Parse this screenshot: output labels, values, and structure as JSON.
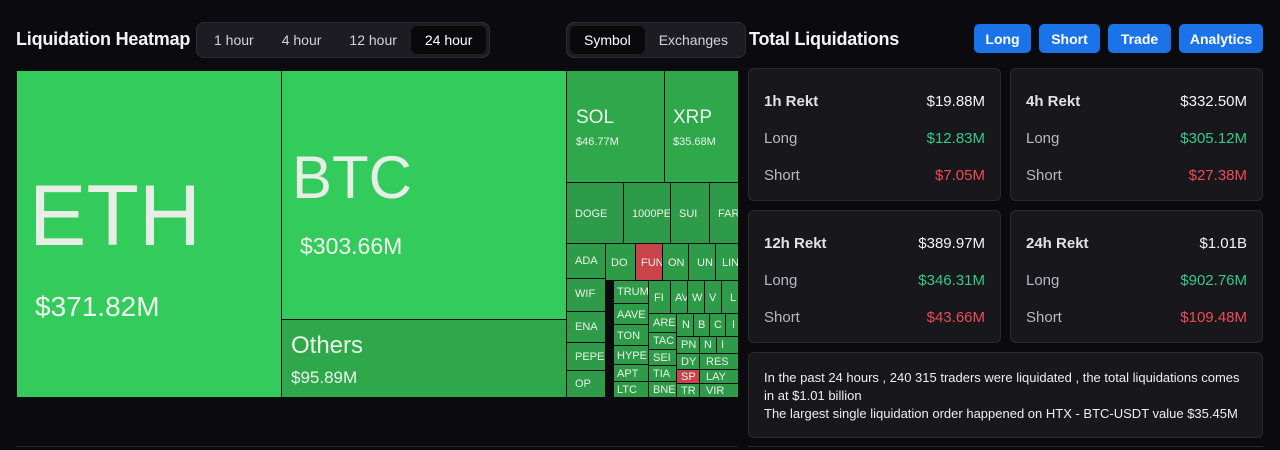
{
  "heatmap": {
    "title": "Liquidation Heatmap",
    "timeframes": [
      "1 hour",
      "4 hour",
      "12 hour",
      "24 hour"
    ],
    "active_timeframe": "24 hour",
    "views": [
      "Symbol",
      "Exchanges"
    ],
    "active_view": "Symbol",
    "tiles": {
      "eth": {
        "symbol": "ETH",
        "value": "$371.82M"
      },
      "btc": {
        "symbol": "BTC",
        "value": "$303.66M"
      },
      "others": {
        "symbol": "Others",
        "value": "$95.89M"
      },
      "sol": {
        "symbol": "SOL",
        "value": "$46.77M"
      },
      "xrp": {
        "symbol": "XRP",
        "value": "$35.68M"
      },
      "small": [
        "DOGE",
        "1000PE",
        "SUI",
        "FAR",
        "ADA",
        "DO",
        "FUN",
        "ON",
        "UN",
        "LIN",
        "WIF",
        "TRUM",
        "FI",
        "AV",
        "W",
        "V",
        "L",
        "ENA",
        "AAVE",
        "ARE",
        "N",
        "B",
        "C",
        "I",
        "TON",
        "TAC",
        "PN",
        "N",
        "I",
        "PEPE",
        "HYPE",
        "SEI",
        "DY",
        "RES",
        "APT",
        "TIA",
        "SP",
        "LAY",
        "OP",
        "LTC",
        "BNE",
        "TR",
        "VIR"
      ]
    }
  },
  "total": {
    "title": "Total Liquidations",
    "buttons": [
      "Long",
      "Short",
      "Trade",
      "Analytics"
    ],
    "cards": [
      {
        "label": "1h Rekt",
        "total": "$19.88M",
        "long_label": "Long",
        "long": "$12.83M",
        "short_label": "Short",
        "short": "$7.05M"
      },
      {
        "label": "4h Rekt",
        "total": "$332.50M",
        "long_label": "Long",
        "long": "$305.12M",
        "short_label": "Short",
        "short": "$27.38M"
      },
      {
        "label": "12h Rekt",
        "total": "$389.97M",
        "long_label": "Long",
        "long": "$346.31M",
        "short_label": "Short",
        "short": "$43.66M"
      },
      {
        "label": "24h Rekt",
        "total": "$1.01B",
        "long_label": "Long",
        "long": "$902.76M",
        "short_label": "Short",
        "short": "$109.48M"
      }
    ],
    "summary_line1": "In the past 24 hours , 240 315 traders were liquidated , the total liquidations comes in at $1.01 billion",
    "summary_line2": "The largest single liquidation order happened on HTX - BTC-USDT value $35.45M"
  },
  "colors": {
    "positive": "#36c98a",
    "negative": "#ee4b56",
    "button": "#1a73e8",
    "tile_bright": "#33cc5c",
    "tile_mid": "#2fa84c",
    "tile_red": "#c9434b"
  }
}
